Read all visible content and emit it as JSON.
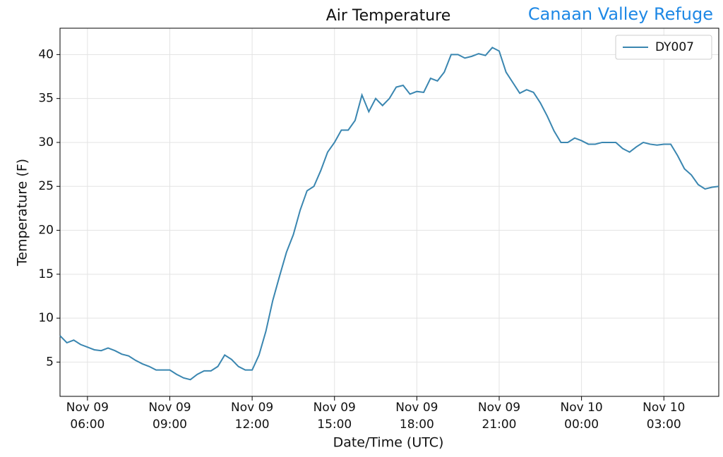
{
  "chart_data": {
    "type": "line",
    "title": "Air Temperature",
    "subtitle": "Canaan Valley Refuge",
    "xlabel": "Date/Time (UTC)",
    "ylabel": "Temperature (F)",
    "x": [
      "Nov 09 05:00",
      "Nov 09 05:15",
      "Nov 09 05:30",
      "Nov 09 05:45",
      "Nov 09 06:00",
      "Nov 09 06:15",
      "Nov 09 06:30",
      "Nov 09 06:45",
      "Nov 09 07:00",
      "Nov 09 07:15",
      "Nov 09 07:30",
      "Nov 09 07:45",
      "Nov 09 08:00",
      "Nov 09 08:15",
      "Nov 09 08:30",
      "Nov 09 08:45",
      "Nov 09 09:00",
      "Nov 09 09:15",
      "Nov 09 09:30",
      "Nov 09 09:45",
      "Nov 09 10:00",
      "Nov 09 10:15",
      "Nov 09 10:30",
      "Nov 09 10:45",
      "Nov 09 11:00",
      "Nov 09 11:15",
      "Nov 09 11:30",
      "Nov 09 11:45",
      "Nov 09 12:00",
      "Nov 09 12:15",
      "Nov 09 12:30",
      "Nov 09 12:45",
      "Nov 09 13:00",
      "Nov 09 13:15",
      "Nov 09 13:30",
      "Nov 09 13:45",
      "Nov 09 14:00",
      "Nov 09 14:15",
      "Nov 09 14:30",
      "Nov 09 14:45",
      "Nov 09 15:00",
      "Nov 09 15:15",
      "Nov 09 15:30",
      "Nov 09 15:45",
      "Nov 09 16:00",
      "Nov 09 16:15",
      "Nov 09 16:30",
      "Nov 09 16:45",
      "Nov 09 17:00",
      "Nov 09 17:15",
      "Nov 09 17:30",
      "Nov 09 17:45",
      "Nov 09 18:00",
      "Nov 09 18:15",
      "Nov 09 18:30",
      "Nov 09 18:45",
      "Nov 09 19:00",
      "Nov 09 19:15",
      "Nov 09 19:30",
      "Nov 09 19:45",
      "Nov 09 20:00",
      "Nov 09 20:15",
      "Nov 09 20:30",
      "Nov 09 20:45",
      "Nov 09 21:00",
      "Nov 09 21:15",
      "Nov 09 21:30",
      "Nov 09 21:45",
      "Nov 09 22:00",
      "Nov 09 22:15",
      "Nov 09 22:30",
      "Nov 09 22:45",
      "Nov 09 23:00",
      "Nov 09 23:15",
      "Nov 09 23:30",
      "Nov 09 23:45",
      "Nov 10 00:00",
      "Nov 10 00:15",
      "Nov 10 00:30",
      "Nov 10 00:45",
      "Nov 10 01:00",
      "Nov 10 01:15",
      "Nov 10 01:30",
      "Nov 10 01:45",
      "Nov 10 02:00",
      "Nov 10 02:15",
      "Nov 10 02:30",
      "Nov 10 02:45",
      "Nov 10 03:00",
      "Nov 10 03:15",
      "Nov 10 03:30",
      "Nov 10 03:45",
      "Nov 10 04:00",
      "Nov 10 04:15",
      "Nov 10 04:30",
      "Nov 10 04:45",
      "Nov 10 05:00"
    ],
    "series": [
      {
        "name": "DY007",
        "color": "#3a86b0",
        "values": [
          8.0,
          7.2,
          7.5,
          7.0,
          6.7,
          6.4,
          6.3,
          6.6,
          6.3,
          5.9,
          5.7,
          5.2,
          4.8,
          4.5,
          4.1,
          4.1,
          4.1,
          3.6,
          3.2,
          3.0,
          3.6,
          4.0,
          4.0,
          4.5,
          5.8,
          5.3,
          4.5,
          4.1,
          4.1,
          5.8,
          8.5,
          12.0,
          14.8,
          17.5,
          19.5,
          22.3,
          24.5,
          25.0,
          26.8,
          28.9,
          30.0,
          31.4,
          31.4,
          32.5,
          35.4,
          33.5,
          35.0,
          34.2,
          35.0,
          36.3,
          36.5,
          35.5,
          35.8,
          35.7,
          37.3,
          37.0,
          38.0,
          40.0,
          40.0,
          39.6,
          39.8,
          40.1,
          39.9,
          40.8,
          40.4,
          38.0,
          36.8,
          35.6,
          36.0,
          35.7,
          34.5,
          33.0,
          31.3,
          30.0,
          30.0,
          30.5,
          30.2,
          29.8,
          29.8,
          30.0,
          30.0,
          30.0,
          29.3,
          28.9,
          29.5,
          30.0,
          29.8,
          29.7,
          29.8,
          29.8,
          28.5,
          27.0,
          26.3,
          25.2,
          24.7,
          24.9,
          25.0
        ]
      }
    ],
    "xlim": [
      "Nov 09 05:00",
      "Nov 10 05:00"
    ],
    "xticks": [
      "Nov 09 06:00",
      "Nov 09 09:00",
      "Nov 09 12:00",
      "Nov 09 15:00",
      "Nov 09 18:00",
      "Nov 09 21:00",
      "Nov 10 00:00",
      "Nov 10 03:00"
    ],
    "ylim": [
      1.1,
      43.0
    ],
    "yticks": [
      5,
      10,
      15,
      20,
      25,
      30,
      35,
      40
    ],
    "grid": true,
    "legend": "upper right"
  }
}
